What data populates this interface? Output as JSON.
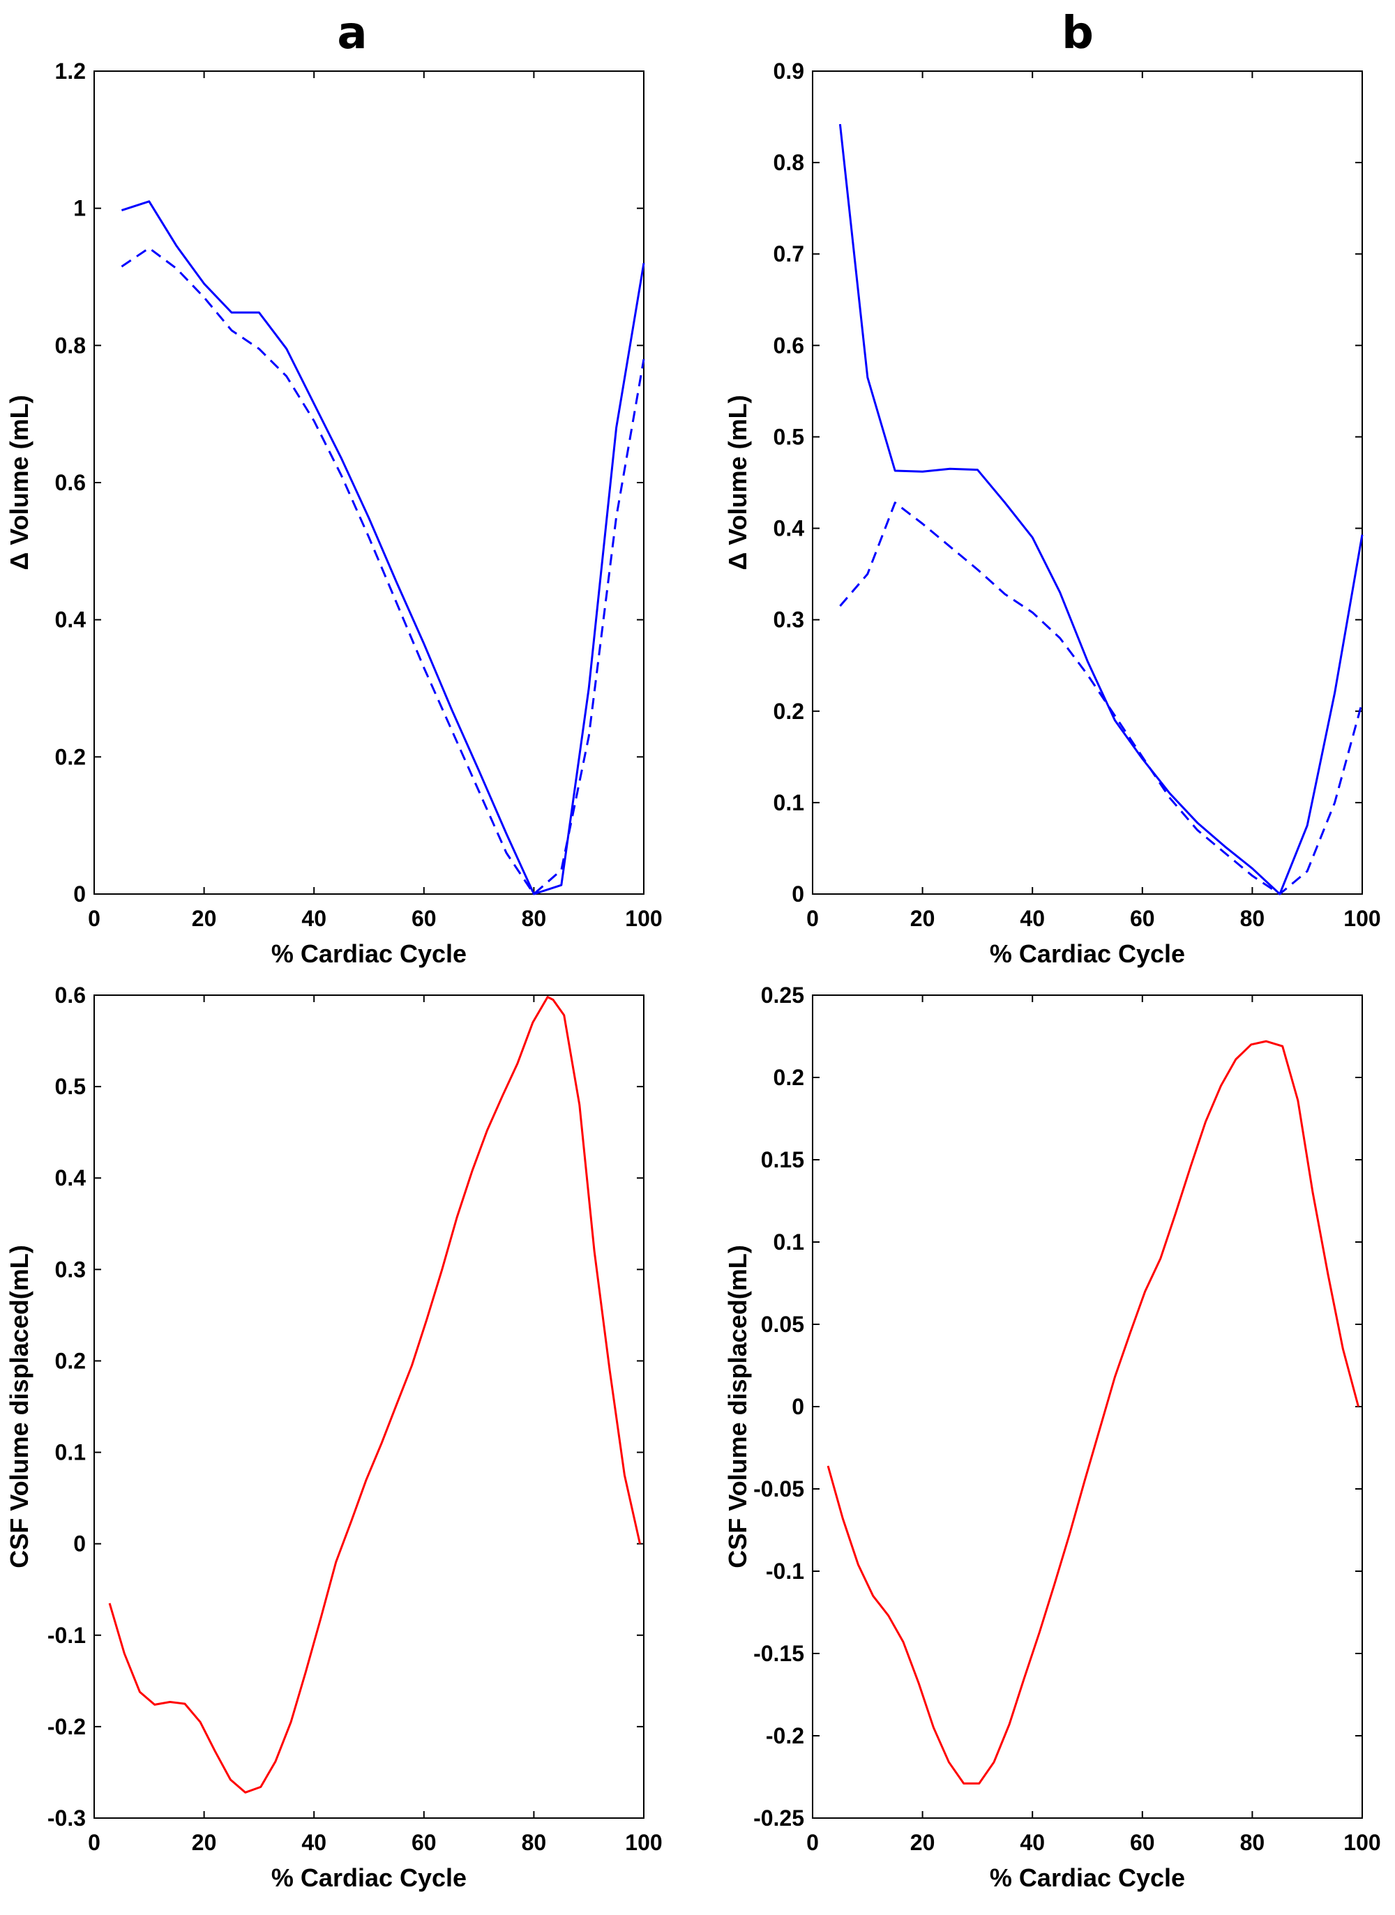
{
  "panel_labels": {
    "a": "a",
    "b": "b"
  },
  "colors": {
    "blue": "#0000ff",
    "red": "#ff0000",
    "axis": "#000000"
  },
  "chart_data": [
    {
      "id": "a-top",
      "type": "line",
      "title": "",
      "xlabel": "% Cardiac Cycle",
      "ylabel": "Δ Volume (mL)",
      "xlim": [
        0,
        100
      ],
      "ylim": [
        0,
        1.2
      ],
      "xticks": [
        0,
        20,
        40,
        60,
        80,
        100
      ],
      "yticks": [
        0,
        0.2,
        0.4,
        0.6,
        0.8,
        1,
        1.2
      ],
      "ytick_labels": [
        "0",
        "0.2",
        "0.4",
        "0.6",
        "0.8",
        "1",
        "1.2"
      ],
      "grid": false,
      "series": [
        {
          "name": "solid",
          "style": "solid",
          "color": "#0000ff",
          "x": [
            5,
            10,
            15,
            20,
            25,
            30,
            35,
            40,
            45,
            50,
            55,
            60,
            65,
            70,
            75,
            80,
            85,
            90,
            95,
            100
          ],
          "y": [
            0.997,
            1.01,
            0.945,
            0.89,
            0.848,
            0.848,
            0.795,
            0.715,
            0.635,
            0.548,
            0.455,
            0.365,
            0.27,
            0.18,
            0.088,
            0.0,
            0.013,
            0.3,
            0.68,
            0.92
          ]
        },
        {
          "name": "dashed",
          "style": "dashed",
          "color": "#0000ff",
          "x": [
            5,
            10,
            15,
            20,
            25,
            30,
            35,
            40,
            45,
            50,
            55,
            60,
            65,
            70,
            75,
            80,
            85,
            90,
            95,
            100
          ],
          "y": [
            0.915,
            0.942,
            0.912,
            0.87,
            0.822,
            0.795,
            0.755,
            0.69,
            0.61,
            0.52,
            0.425,
            0.33,
            0.24,
            0.15,
            0.06,
            0.0,
            0.035,
            0.23,
            0.55,
            0.78
          ]
        }
      ]
    },
    {
      "id": "b-top",
      "type": "line",
      "title": "",
      "xlabel": "% Cardiac Cycle",
      "ylabel": "Δ Volume (mL)",
      "xlim": [
        0,
        100
      ],
      "ylim": [
        0,
        0.9
      ],
      "xticks": [
        0,
        20,
        40,
        60,
        80,
        100
      ],
      "yticks": [
        0,
        0.1,
        0.2,
        0.3,
        0.4,
        0.5,
        0.6,
        0.7,
        0.8,
        0.9
      ],
      "ytick_labels": [
        "0",
        "0.1",
        "0.2",
        "0.3",
        "0.4",
        "0.5",
        "0.6",
        "0.7",
        "0.8",
        "0.9"
      ],
      "grid": false,
      "series": [
        {
          "name": "solid",
          "style": "solid",
          "color": "#0000ff",
          "x": [
            5,
            10,
            15,
            20,
            25,
            30,
            35,
            40,
            45,
            50,
            55,
            60,
            65,
            70,
            75,
            80,
            85,
            90,
            95,
            100
          ],
          "y": [
            0.842,
            0.565,
            0.463,
            0.462,
            0.465,
            0.464,
            0.428,
            0.39,
            0.33,
            0.255,
            0.19,
            0.148,
            0.11,
            0.078,
            0.052,
            0.028,
            0.0,
            0.075,
            0.22,
            0.393
          ]
        },
        {
          "name": "dashed",
          "style": "dashed",
          "color": "#0000ff",
          "x": [
            5,
            10,
            15,
            20,
            25,
            30,
            35,
            40,
            45,
            50,
            55,
            60,
            65,
            70,
            75,
            80,
            85,
            90,
            95,
            100
          ],
          "y": [
            0.315,
            0.35,
            0.428,
            0.405,
            0.38,
            0.355,
            0.328,
            0.308,
            0.28,
            0.24,
            0.195,
            0.15,
            0.105,
            0.07,
            0.045,
            0.02,
            0.0,
            0.025,
            0.1,
            0.21
          ]
        }
      ]
    },
    {
      "id": "a-bottom",
      "type": "line",
      "title": "",
      "xlabel": "% Cardiac Cycle",
      "ylabel": "CSF Volume displaced(mL)",
      "xlim": [
        0,
        100
      ],
      "ylim": [
        -0.3,
        0.6
      ],
      "xticks": [
        0,
        20,
        40,
        60,
        80,
        100
      ],
      "yticks": [
        -0.3,
        -0.2,
        -0.1,
        0,
        0.1,
        0.2,
        0.3,
        0.4,
        0.5,
        0.6
      ],
      "ytick_labels": [
        "-0.3",
        "-0.2",
        "-0.1",
        "0",
        "0.1",
        "0.2",
        "0.3",
        "0.4",
        "0.5",
        "0.6"
      ],
      "grid": false,
      "series": [
        {
          "name": "CSF",
          "style": "solid",
          "color": "#ff0000",
          "x": [
            2.8,
            5.5,
            8.3,
            11,
            13.8,
            16.5,
            19.3,
            22,
            24.8,
            27.5,
            30.3,
            33,
            35.8,
            38.5,
            41.3,
            44,
            46.8,
            49.5,
            52.3,
            55,
            57.8,
            60.5,
            63.3,
            66,
            68.8,
            71.5,
            74.3,
            77,
            79.8,
            82.5,
            83.5,
            85.5,
            88.3,
            91,
            93.8,
            96.5,
            99.3
          ],
          "y": [
            -0.065,
            -0.12,
            -0.162,
            -0.176,
            -0.173,
            -0.175,
            -0.195,
            -0.227,
            -0.258,
            -0.272,
            -0.266,
            -0.238,
            -0.195,
            -0.14,
            -0.08,
            -0.02,
            0.025,
            0.07,
            0.11,
            0.152,
            0.195,
            0.245,
            0.3,
            0.357,
            0.408,
            0.452,
            0.49,
            0.525,
            0.57,
            0.598,
            0.595,
            0.578,
            0.48,
            0.32,
            0.19,
            0.075,
            0.0
          ]
        }
      ]
    },
    {
      "id": "b-bottom",
      "type": "line",
      "title": "",
      "xlabel": "% Cardiac Cycle",
      "ylabel": "CSF Volume displaced(mL)",
      "xlim": [
        0,
        100
      ],
      "ylim": [
        -0.25,
        0.25
      ],
      "xticks": [
        0,
        20,
        40,
        60,
        80,
        100
      ],
      "yticks": [
        -0.25,
        -0.2,
        -0.15,
        -0.1,
        -0.05,
        0,
        0.05,
        0.1,
        0.15,
        0.2,
        0.25
      ],
      "ytick_labels": [
        "-0.25",
        "-0.2",
        "-0.15",
        "-0.1",
        "-0.05",
        "0",
        "0.05",
        "0.1",
        "0.15",
        "0.2",
        "0.25"
      ],
      "grid": false,
      "series": [
        {
          "name": "CSF",
          "style": "solid",
          "color": "#ff0000",
          "x": [
            2.8,
            5.5,
            8.3,
            11,
            13.8,
            16.5,
            19.3,
            22,
            24.8,
            27.5,
            30.3,
            33,
            35.8,
            38.5,
            41.3,
            44,
            46.8,
            49.5,
            52.3,
            55,
            57.8,
            60.5,
            63.3,
            66,
            68.8,
            71.5,
            74.3,
            77,
            79.8,
            82.5,
            83.5,
            85.5,
            88.3,
            91,
            93.8,
            96.5,
            99.3
          ],
          "y": [
            -0.036,
            -0.068,
            -0.096,
            -0.115,
            -0.127,
            -0.143,
            -0.168,
            -0.195,
            -0.216,
            -0.229,
            -0.229,
            -0.216,
            -0.193,
            -0.165,
            -0.137,
            -0.108,
            -0.077,
            -0.045,
            -0.013,
            0.018,
            0.045,
            0.07,
            0.09,
            0.117,
            0.146,
            0.173,
            0.195,
            0.211,
            0.22,
            0.222,
            0.221,
            0.219,
            0.186,
            0.13,
            0.08,
            0.035,
            0.0
          ]
        }
      ]
    }
  ]
}
